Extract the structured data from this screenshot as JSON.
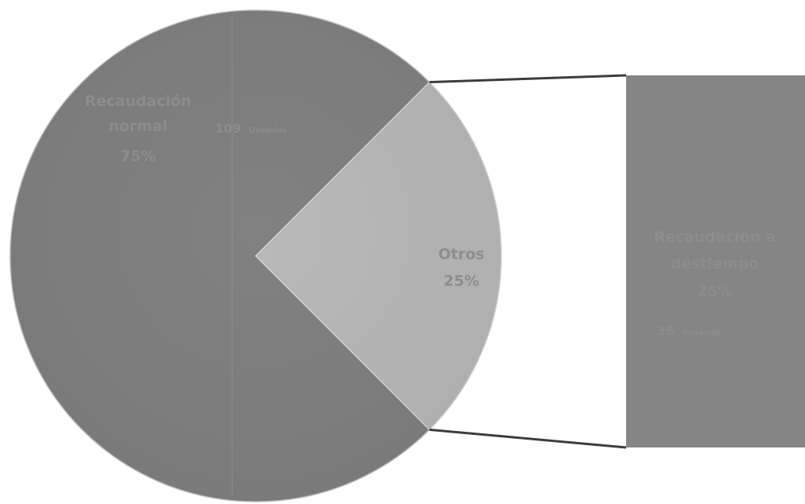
{
  "chart_data": {
    "type": "pie",
    "subtype": "pie-of-bar",
    "title": "",
    "slices": [
      {
        "label_lines": [
          "Recaudación",
          "normal"
        ],
        "percent_label": "75%",
        "value": 75,
        "users_count": "109",
        "users_unit": "Usuarios",
        "color": "#818181"
      },
      {
        "label_lines": [
          "Otros"
        ],
        "percent_label": "25%",
        "value": 25,
        "color": "#b9b9b9"
      }
    ],
    "breakout_bar": {
      "label_lines": [
        "Recaudación a",
        "destiempo"
      ],
      "percent_label": "25%",
      "value": 25,
      "users_count": "36",
      "users_unit": "Usuarios",
      "color": "#858585"
    },
    "colors": {
      "main_slice": "#818181",
      "other_slice": "#b9b9b9",
      "bar": "#858585",
      "connector": "#3c3c3c",
      "label_text": "#8d8d8d"
    }
  }
}
